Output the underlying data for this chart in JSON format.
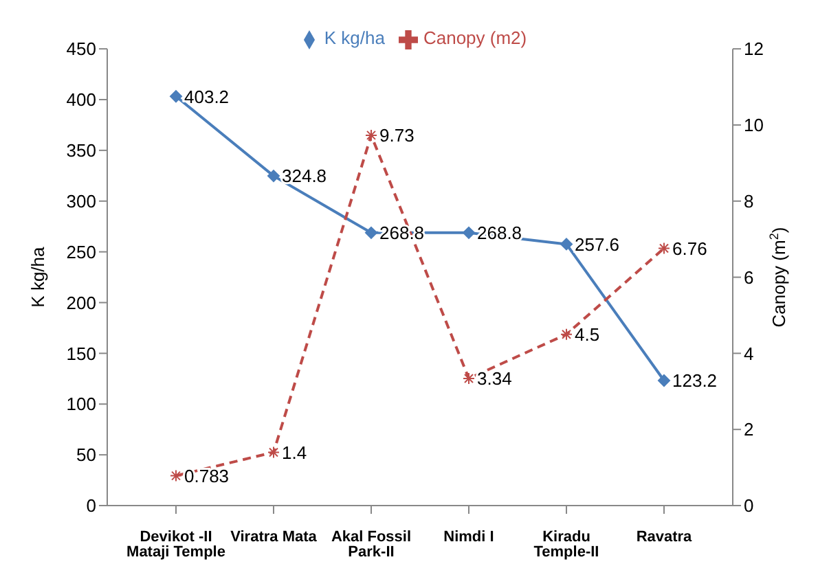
{
  "chart_data": {
    "type": "line",
    "categories": [
      "Devikot -II Mataji Temple",
      "Viratra Mata",
      "Akal Fossil Park-II",
      "Nimdi I",
      "Kiradu Temple-II",
      "Ravatra"
    ],
    "series": [
      {
        "name": "K kg/ha",
        "color": "#4a7ebb",
        "values": [
          403.2,
          324.8,
          268.8,
          268.8,
          257.6,
          123.2
        ],
        "marker": "diamond",
        "line_style": "solid"
      },
      {
        "name": "Canopy (m2)",
        "color": "#be4b48",
        "values": [
          0.783,
          1.4,
          9.73,
          3.34,
          4.5,
          6.76
        ],
        "axis": "y2",
        "marker": "cross",
        "line_style": "dashed"
      }
    ],
    "ylabel": "K kg/ha",
    "y2label": "Canopy (m$^{2}$)",
    "ylim": [
      0,
      450
    ],
    "yticks": [
      0,
      50,
      100,
      150,
      200,
      250,
      300,
      350,
      400,
      450
    ],
    "y2lim": [
      0,
      12
    ],
    "y2ticks": [
      0,
      2,
      4,
      6,
      8,
      10,
      12
    ],
    "data_labels": true,
    "legend": "top",
    "grid": false
  }
}
